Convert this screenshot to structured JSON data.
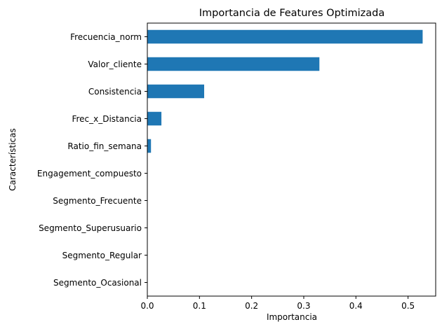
{
  "chart_data": {
    "type": "bar",
    "orientation": "horizontal",
    "title": "Importancia de Features Optimizada",
    "xlabel": "Importancia",
    "ylabel": "Características",
    "categories": [
      "Frecuencia_norm",
      "Valor_cliente",
      "Consistencia",
      "Frec_x_Distancia",
      "Ratio_fin_semana",
      "Engagement_compuesto",
      "Segmento_Frecuente",
      "Segmento_Superusuario",
      "Segmento_Regular",
      "Segmento_Ocasional"
    ],
    "values": [
      0.528,
      0.33,
      0.109,
      0.027,
      0.007,
      0.0,
      0.0,
      0.0,
      0.0,
      0.0
    ],
    "xlim": [
      0,
      0.553
    ],
    "xticks": [
      0.0,
      0.1,
      0.2,
      0.3,
      0.4,
      0.5
    ],
    "xtick_labels": [
      "0.0",
      "0.1",
      "0.2",
      "0.3",
      "0.4",
      "0.5"
    ],
    "bar_color": "#1f77b4",
    "grid": false,
    "legend": "none"
  }
}
